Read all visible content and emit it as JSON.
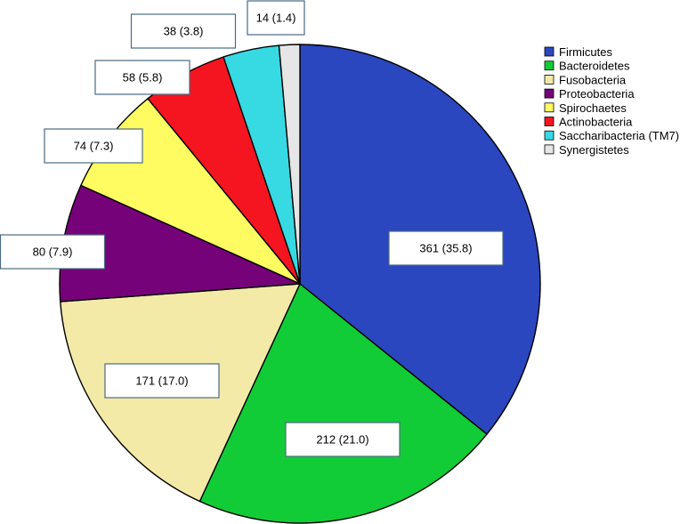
{
  "chart_data": {
    "type": "pie",
    "title": "",
    "categories": [
      "Firmicutes",
      "Bacteroidetes",
      "Fusobacteria",
      "Proteobacteria",
      "Spirochaetes",
      "Actinobacteria",
      "Saccharibacteria (TM7)",
      "Synergistetes"
    ],
    "values": [
      361,
      212,
      171,
      80,
      74,
      58,
      38,
      14
    ],
    "percentages": [
      35.8,
      21.0,
      17.0,
      7.9,
      7.3,
      5.8,
      3.8,
      1.4
    ],
    "data_labels": [
      "361 (35.8)",
      "212 (21.0)",
      "171 (17.0)",
      "80 (7.9)",
      "74 (7.3)",
      "58 (5.8)",
      "38 (3.8)",
      "14 (1.4)"
    ],
    "colors": [
      "#2a47bf",
      "#12cc37",
      "#f3eaa8",
      "#76027a",
      "#fffc62",
      "#f51520",
      "#37d9e3",
      "#e6e6e6"
    ],
    "start": "12 o'clock",
    "direction": "clockwise",
    "legend_placement": "top-right"
  }
}
